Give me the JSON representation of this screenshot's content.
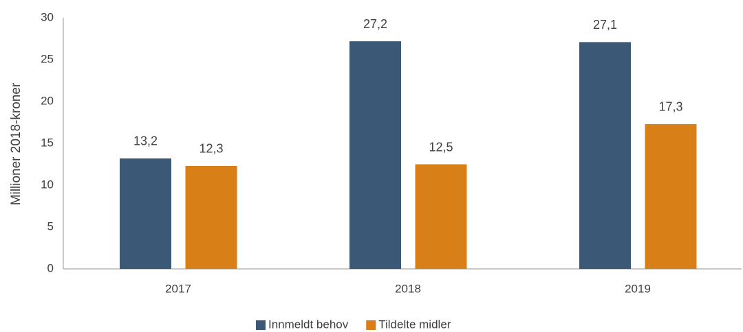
{
  "chart_data": {
    "type": "bar",
    "y_label": "Millioner 2018-kroner",
    "categories": [
      "2017",
      "2018",
      "2019"
    ],
    "series": [
      {
        "name": "Innmeldt behov",
        "color": "#3b5876",
        "values": [
          13.2,
          27.2,
          27.1
        ],
        "value_labels": [
          "13,2",
          "27,2",
          "27,1"
        ]
      },
      {
        "name": "Tildelte midler",
        "color": "#d97f17",
        "values": [
          12.3,
          12.5,
          17.3
        ],
        "value_labels": [
          "12,3",
          "12,5",
          "17,3"
        ]
      }
    ],
    "ylim": [
      0,
      30
    ],
    "yticks": [
      0,
      5,
      10,
      15,
      20,
      25,
      30
    ],
    "grid": false,
    "legend": "bottom"
  }
}
